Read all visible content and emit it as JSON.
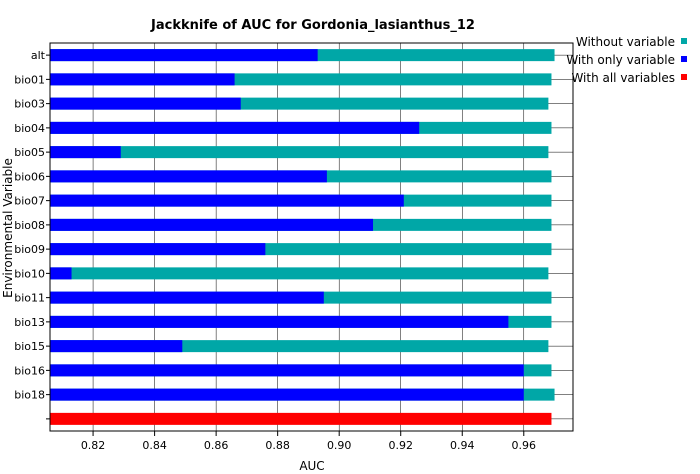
{
  "chart_data": {
    "type": "bar",
    "orientation": "horizontal",
    "title": "Jackknife of AUC for Gordonia_lasianthus_12",
    "xlabel": "AUC",
    "ylabel": "Environmental Variable",
    "xlim": [
      0.806,
      0.976
    ],
    "xticks": [
      "0.82",
      "0.84",
      "0.86",
      "0.88",
      "0.90",
      "0.92",
      "0.94",
      "0.96"
    ],
    "grid": true,
    "legend_position": "right",
    "categories": [
      "alt",
      "bio01",
      "bio03",
      "bio04",
      "bio05",
      "bio06",
      "bio07",
      "bio08",
      "bio09",
      "bio10",
      "bio11",
      "bio13",
      "bio15",
      "bio16",
      "bio18",
      ""
    ],
    "series": [
      {
        "name": "Without variable",
        "color": "#00a7a7",
        "values": [
          0.97,
          0.969,
          0.968,
          0.969,
          0.968,
          0.969,
          0.969,
          0.969,
          0.969,
          0.968,
          0.969,
          0.969,
          0.968,
          0.969,
          0.97,
          null
        ]
      },
      {
        "name": "With only variable",
        "color": "#0000ff",
        "values": [
          0.893,
          0.866,
          0.868,
          0.926,
          0.829,
          0.896,
          0.921,
          0.911,
          0.876,
          0.813,
          0.895,
          0.955,
          0.849,
          0.96,
          0.96,
          null
        ]
      },
      {
        "name": "With all variables",
        "color": "#ff0000",
        "values": [
          null,
          null,
          null,
          null,
          null,
          null,
          null,
          null,
          null,
          null,
          null,
          null,
          null,
          null,
          null,
          0.969
        ]
      }
    ]
  }
}
